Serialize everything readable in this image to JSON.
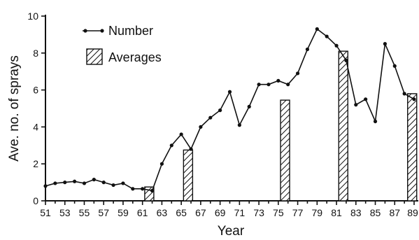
{
  "chart_data": {
    "type": "line+bar",
    "xlabel": "Year",
    "ylabel": "Ave. no. of sprays",
    "xlim": [
      51,
      89
    ],
    "ylim": [
      0,
      10
    ],
    "x_ticks": [
      "51",
      "53",
      "55",
      "57",
      "59",
      "61",
      "63",
      "65",
      "67",
      "69",
      "71",
      "73",
      "75",
      "77",
      "79",
      "81",
      "83",
      "85",
      "87",
      "89"
    ],
    "y_ticks": [
      "0",
      "2",
      "4",
      "6",
      "8",
      "10"
    ],
    "legend": {
      "position": "top-left",
      "entries": [
        "Number",
        "Averages"
      ]
    },
    "series": [
      {
        "name": "Number",
        "type": "line",
        "x": [
          51,
          52,
          53,
          54,
          55,
          56,
          57,
          58,
          59,
          60,
          61,
          62,
          63,
          64,
          65,
          66,
          67,
          68,
          69,
          70,
          71,
          72,
          73,
          74,
          75,
          76,
          77,
          78,
          79,
          80,
          81,
          82,
          83,
          84,
          85,
          86,
          87,
          88,
          89
        ],
        "y": [
          0.8,
          0.95,
          1.0,
          1.05,
          0.95,
          1.15,
          1.0,
          0.85,
          0.95,
          0.65,
          0.65,
          0.55,
          2.0,
          3.0,
          3.6,
          2.8,
          4.0,
          4.5,
          4.9,
          5.9,
          4.1,
          5.1,
          6.3,
          6.3,
          6.5,
          6.3,
          6.9,
          8.2,
          9.3,
          8.9,
          8.4,
          7.6,
          5.2,
          5.5,
          4.3,
          8.5,
          7.3,
          5.8,
          5.5
        ]
      },
      {
        "name": "Averages",
        "type": "bar",
        "x": [
          61.7,
          65.7,
          75.7,
          81.7,
          88.8
        ],
        "y": [
          0.75,
          2.75,
          5.45,
          8.1,
          5.8
        ]
      }
    ]
  }
}
